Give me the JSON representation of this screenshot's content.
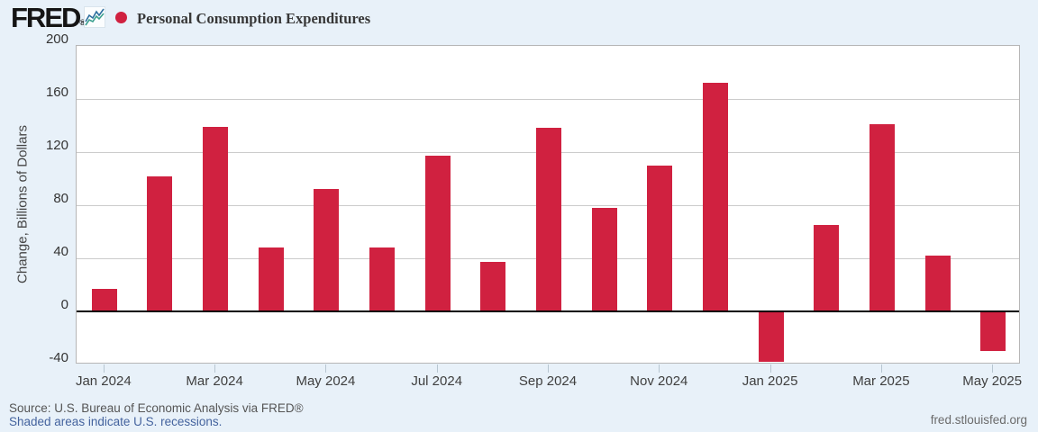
{
  "header": {
    "logo_text": "FRED",
    "registered_mark": "®",
    "sparkline_icon": "fred-sparkline-icon"
  },
  "chart_data": {
    "type": "bar",
    "title": "Personal Consumption Expenditures",
    "xlabel": "",
    "ylabel": "Change, Billions of Dollars",
    "categories": [
      "Jan 2024",
      "Feb 2024",
      "Mar 2024",
      "Apr 2024",
      "May 2024",
      "Jun 2024",
      "Jul 2024",
      "Aug 2024",
      "Sep 2024",
      "Oct 2024",
      "Nov 2024",
      "Dec 2024",
      "Jan 2025",
      "Feb 2025",
      "Mar 2025",
      "Apr 2025",
      "May 2025"
    ],
    "values": [
      17,
      102,
      139,
      48,
      92,
      48,
      117,
      37,
      138,
      78,
      110,
      172,
      -38,
      65,
      141,
      42,
      -30
    ],
    "xtick_labels": [
      "Jan 2024",
      "Mar 2024",
      "May 2024",
      "Jul 2024",
      "Sep 2024",
      "Nov 2024",
      "Jan 2025",
      "Mar 2025",
      "May 2025"
    ],
    "yticks": [
      200,
      160,
      120,
      80,
      40,
      0,
      -40
    ],
    "ylim": [
      -40,
      200
    ],
    "grid": "horizontal",
    "legend_position": "top-left",
    "bar_color": "#d02140",
    "plot_background": "#ffffff",
    "page_background": "#e8f1f9"
  },
  "footer": {
    "source_text": "Source: U.S. Bureau of Economic Analysis via FRED®",
    "recession_note": "Shaded areas indicate U.S. recessions.",
    "site_link": "fred.stlouisfed.org"
  }
}
